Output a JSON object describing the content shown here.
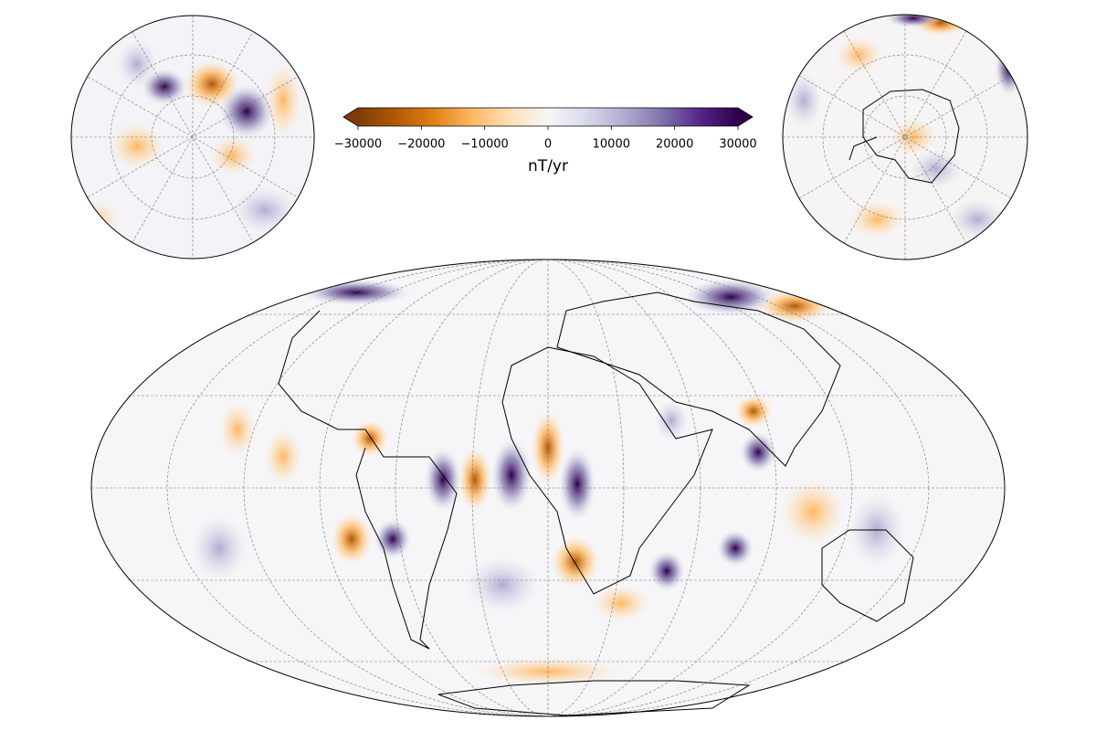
{
  "colorbar": {
    "label": "nT/yr",
    "lim": [
      -30000,
      30000
    ],
    "extend": "both",
    "colors": [
      "#7f3b08",
      "#b35806",
      "#e08214",
      "#fdb863",
      "#fee0b6",
      "#f7f7f7",
      "#d8daeb",
      "#b2abd2",
      "#8073ac",
      "#542788",
      "#2d004b"
    ],
    "ticks": [
      {
        "value": -30000,
        "label": "−30000"
      },
      {
        "value": -20000,
        "label": "−20000"
      },
      {
        "value": -10000,
        "label": "−10000"
      },
      0,
      10000,
      20000,
      30000
    ]
  }
}
